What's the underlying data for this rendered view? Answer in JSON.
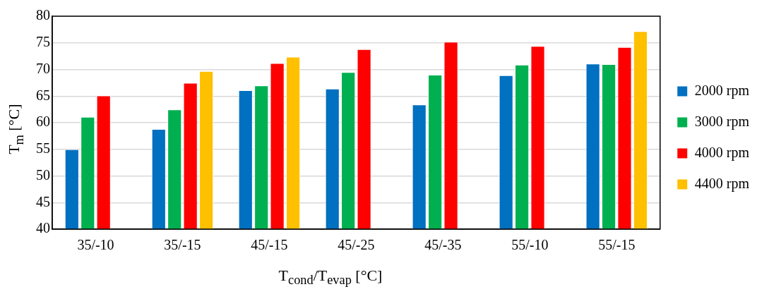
{
  "chart_data": {
    "type": "bar",
    "xlabel": "T$_{cond}$/T$_{evap}$ [°C]",
    "ylabel": "T$_{m}$ [°C]",
    "categories": [
      "35/-10",
      "35/-15",
      "45/-15",
      "45/-25",
      "45/-35",
      "55/-10",
      "55/-15"
    ],
    "series": [
      {
        "name": "2000 rpm",
        "color": "#0070c0",
        "values": [
          55.0,
          58.8,
          66.1,
          66.4,
          63.4,
          68.9,
          71.1
        ]
      },
      {
        "name": "3000 rpm",
        "color": "#00b050",
        "values": [
          61.1,
          62.5,
          67.0,
          69.5,
          69.0,
          70.9,
          71.0
        ]
      },
      {
        "name": "4000 rpm",
        "color": "#ff0000",
        "values": [
          65.1,
          67.5,
          71.2,
          73.8,
          75.2,
          74.4,
          74.2
        ]
      },
      {
        "name": "4400 rpm",
        "color": "#ffc000",
        "values": [
          null,
          69.7,
          72.4,
          null,
          null,
          null,
          77.2
        ]
      }
    ],
    "ylim": [
      40,
      80
    ],
    "yticks": [
      40,
      45,
      50,
      55,
      60,
      65,
      70,
      75,
      80
    ],
    "grid": "y",
    "legend": "right"
  }
}
